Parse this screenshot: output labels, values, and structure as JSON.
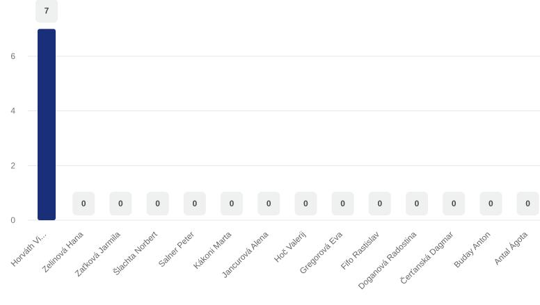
{
  "chart_data": {
    "type": "bar",
    "categories": [
      "Horváth Vi...",
      "Zelinová Hana",
      "Zaťková Jarmila",
      "Šlachta Norbert",
      "Salner Peter",
      "Kákoni Marta",
      "Jancurová Alena",
      "Hoč Valerij",
      "Gregorová Eva",
      "Fifo Rastislav",
      "Doganová Radostina",
      "Čerťanská Dagmar",
      "Buday Anton",
      "Antal Ágota"
    ],
    "values": [
      7,
      0,
      0,
      0,
      0,
      0,
      0,
      0,
      0,
      0,
      0,
      0,
      0,
      0
    ],
    "yticks": [
      0,
      2,
      4,
      6
    ],
    "ylim": [
      0,
      7.5
    ],
    "title": "",
    "xlabel": "",
    "ylabel": "",
    "grid": true,
    "data_labels": true,
    "bar_color": "#1a2f7a"
  }
}
